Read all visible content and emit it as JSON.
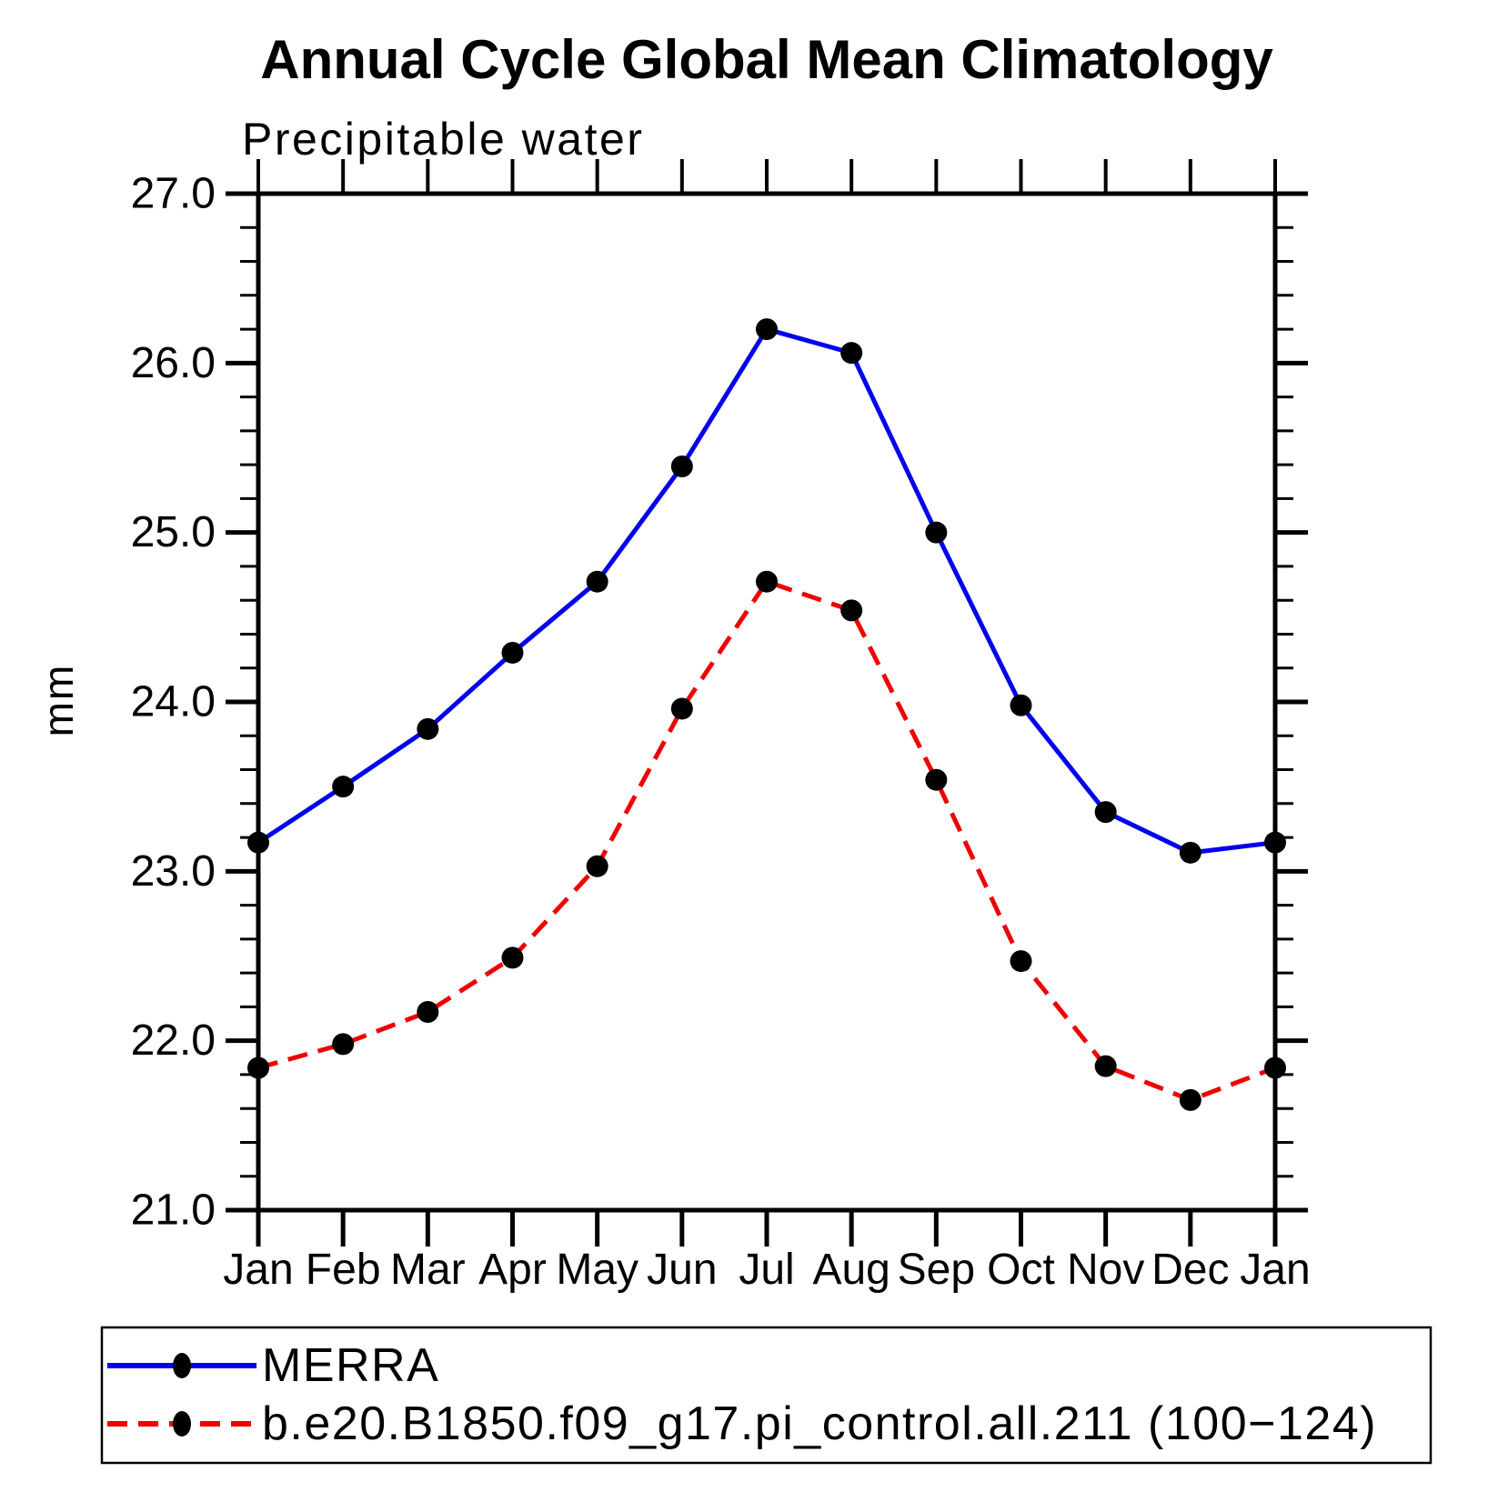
{
  "title": "Annual Cycle Global Mean Climatology",
  "subtitle": "Precipitable water",
  "y_axis_label": "mm",
  "colors": {
    "axis": "#000000",
    "text": "#000000",
    "marker": "#000000",
    "merra_line": "#0000ee",
    "model_line": "#ee0000",
    "background": "#ffffff"
  },
  "chart_data": {
    "type": "line",
    "categories": [
      "Jan",
      "Feb",
      "Mar",
      "Apr",
      "May",
      "Jun",
      "Jul",
      "Aug",
      "Sep",
      "Oct",
      "Nov",
      "Dec",
      "Jan"
    ],
    "series": [
      {
        "name": "MERRA",
        "color": "#0000ee",
        "line_style": "solid",
        "marker": "filled-circle",
        "values": [
          23.17,
          23.5,
          23.84,
          24.29,
          24.71,
          25.39,
          26.2,
          26.06,
          25.0,
          23.98,
          23.35,
          23.11,
          23.17
        ]
      },
      {
        "name": "b.e20.B1850.f09_g17.pi_control.all.211 (100−124)",
        "color": "#ee0000",
        "line_style": "dashed",
        "marker": "filled-circle",
        "values": [
          21.84,
          21.98,
          22.17,
          22.49,
          23.03,
          23.96,
          24.71,
          24.54,
          23.54,
          22.47,
          21.85,
          21.65,
          21.84
        ]
      }
    ],
    "ylim": [
      21.0,
      27.0
    ],
    "yticks": [
      21.0,
      22.0,
      23.0,
      24.0,
      25.0,
      26.0,
      27.0
    ],
    "ytick_labels": [
      "21.0",
      "22.0",
      "23.0",
      "24.0",
      "25.0",
      "26.0",
      "27.0"
    ],
    "y_minor_tick_interval": 0.2,
    "grid": "off",
    "legend_position": "bottom"
  }
}
